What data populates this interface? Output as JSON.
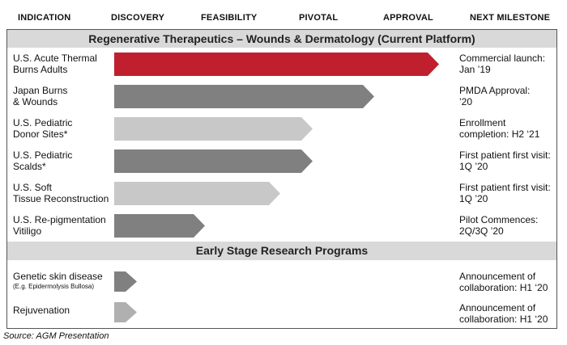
{
  "stages": [
    "INDICATION",
    "DISCOVERY",
    "FEASIBILITY",
    "PIVOTAL",
    "APPROVAL",
    "NEXT MILESTONE"
  ],
  "sections": {
    "platform": "Regenerative Therapeutics – Wounds & Dermatology (Current Platform)",
    "early": "Early Stage Research Programs"
  },
  "programs": [
    {
      "label": [
        "U.S. Acute Thermal",
        "Burns Adults"
      ],
      "milestone": [
        "Commercial launch:",
        "Jan ’19"
      ],
      "progress": 1.0,
      "color": "#c0202e"
    },
    {
      "label": [
        "Japan Burns",
        "& Wounds"
      ],
      "milestone": [
        "PMDA Approval:",
        "’20"
      ],
      "progress": 0.8,
      "color": "#808080"
    },
    {
      "label": [
        "U.S. Pediatric",
        "Donor Sites*"
      ],
      "milestone": [
        "Enrollment",
        "completion: H2 ‘21"
      ],
      "progress": 0.61,
      "color": "#c8c8c8"
    },
    {
      "label": [
        "U.S. Pediatric",
        "Scalds*"
      ],
      "milestone": [
        "First patient first visit:",
        "1Q ’20"
      ],
      "progress": 0.61,
      "color": "#808080"
    },
    {
      "label": [
        "U.S. Soft",
        "Tissue Reconstruction"
      ],
      "milestone": [
        "First patient first visit:",
        "1Q ’20"
      ],
      "progress": 0.51,
      "color": "#c8c8c8"
    },
    {
      "label": [
        "U.S. Re-pigmentation",
        "Vitiligo"
      ],
      "milestone": [
        "Pilot Commences:",
        "2Q/3Q ’20"
      ],
      "progress": 0.28,
      "color": "#808080"
    }
  ],
  "research": [
    {
      "label": "Genetic skin disease",
      "sublabel": "(E.g. Epidermolysis Bullosa)",
      "milestone": [
        "Announcement of",
        "collaboration: H1 ‘20"
      ],
      "progress": 0.07,
      "color": "#808080"
    },
    {
      "label": "Rejuvenation",
      "milestone": [
        "Announcement of",
        "collaboration: H1 ‘20"
      ],
      "progress": 0.07,
      "color": "#b0b0b0"
    }
  ],
  "source": "Source: AGM Presentation"
}
